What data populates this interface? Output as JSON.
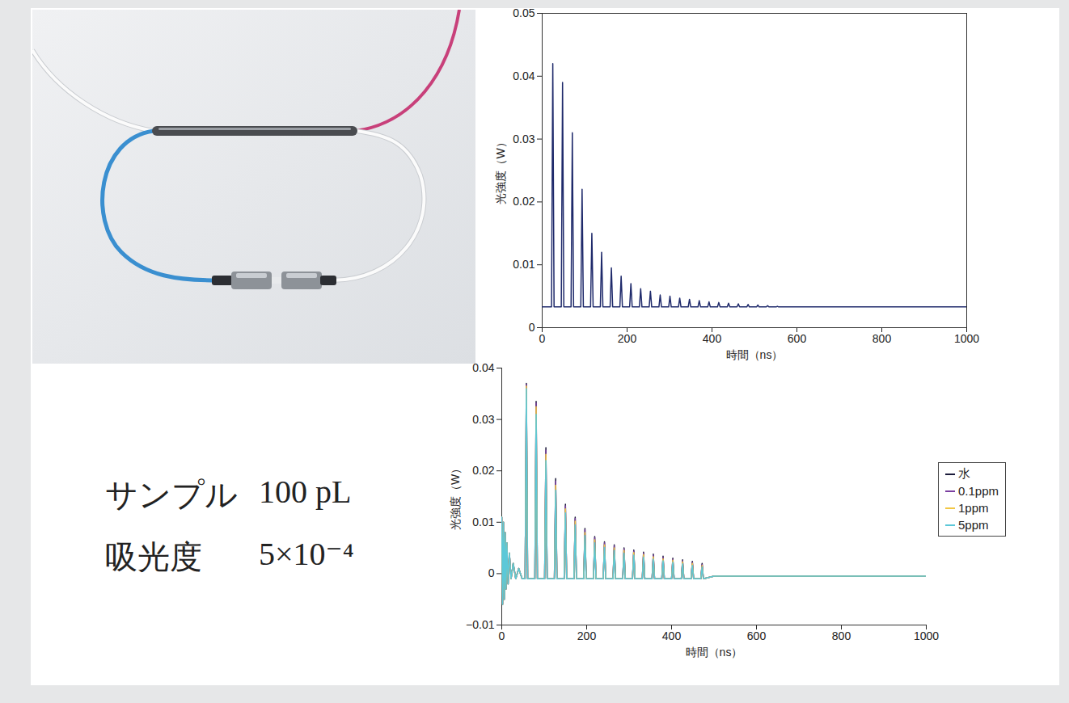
{
  "chart_data": [
    {
      "type": "line",
      "x_label": "時間（ns）",
      "y_label": "光強度（W）",
      "xlim": [
        0,
        1000
      ],
      "xticks": [
        0,
        200,
        400,
        600,
        800,
        1000
      ],
      "ylim": [
        0,
        0.05
      ],
      "yticks": [
        0,
        0.01,
        0.02,
        0.03,
        0.04,
        0.05
      ],
      "grid": false,
      "x": [
        0,
        22,
        25,
        28,
        45,
        48,
        51,
        68,
        71,
        74,
        91,
        94,
        97,
        114,
        117,
        120,
        137,
        140,
        143,
        160,
        163,
        166,
        183,
        186,
        189,
        206,
        209,
        212,
        229,
        232,
        235,
        252,
        255,
        258,
        275,
        278,
        281,
        298,
        301,
        304,
        321,
        324,
        327,
        344,
        347,
        350,
        367,
        370,
        373,
        390,
        393,
        396,
        413,
        416,
        419,
        436,
        439,
        442,
        459,
        462,
        465,
        482,
        485,
        488,
        505,
        508,
        511,
        528,
        531,
        534,
        551,
        554,
        557,
        600,
        1000
      ],
      "series": [
        {
          "color": "#1f2a6b",
          "values": [
            0.0033,
            0.0033,
            0.042,
            0.0033,
            0.0033,
            0.039,
            0.0033,
            0.0033,
            0.031,
            0.0033,
            0.0033,
            0.022,
            0.0033,
            0.0033,
            0.015,
            0.0033,
            0.0033,
            0.012,
            0.0033,
            0.0033,
            0.0095,
            0.0033,
            0.0033,
            0.0082,
            0.0033,
            0.0033,
            0.007,
            0.0033,
            0.0033,
            0.0062,
            0.0033,
            0.0033,
            0.0058,
            0.0033,
            0.0033,
            0.0052,
            0.0033,
            0.0033,
            0.005,
            0.0033,
            0.0033,
            0.0047,
            0.0033,
            0.0033,
            0.0045,
            0.0033,
            0.0033,
            0.0043,
            0.0033,
            0.0033,
            0.0041,
            0.0033,
            0.0033,
            0.004,
            0.0033,
            0.0033,
            0.0039,
            0.0033,
            0.0033,
            0.0038,
            0.0033,
            0.0033,
            0.0037,
            0.0033,
            0.0033,
            0.0036,
            0.0033,
            0.0033,
            0.0035,
            0.0033,
            0.0033,
            0.0034,
            0.0033,
            0.0033,
            0.0033
          ]
        }
      ]
    },
    {
      "type": "line",
      "x_label": "時間（ns）",
      "y_label": "光強度（W）",
      "xlim": [
        0,
        1000
      ],
      "xticks": [
        0,
        200,
        400,
        600,
        800,
        1000
      ],
      "ylim": [
        -0.01,
        0.04
      ],
      "yticks": [
        -0.01,
        0,
        0.01,
        0.02,
        0.03,
        0.04
      ],
      "grid": false,
      "legend": "right",
      "x": [
        0,
        2,
        4,
        6,
        8,
        10,
        12,
        15,
        18,
        22,
        27,
        33,
        40,
        48,
        55,
        58,
        61,
        78,
        81,
        84,
        101,
        104,
        107,
        124,
        127,
        130,
        147,
        150,
        153,
        170,
        173,
        176,
        193,
        196,
        199,
        216,
        219,
        222,
        239,
        242,
        245,
        262,
        265,
        268,
        285,
        288,
        291,
        308,
        311,
        314,
        331,
        334,
        337,
        354,
        357,
        360,
        377,
        380,
        383,
        400,
        403,
        406,
        423,
        426,
        429,
        446,
        449,
        452,
        469,
        472,
        475,
        500,
        1000
      ],
      "series": [
        {
          "name": "水",
          "color": "#1b1b3a",
          "values": [
            0.011,
            -0.006,
            0.01,
            -0.005,
            0.008,
            -0.003,
            0.006,
            -0.002,
            0.004,
            -0.001,
            0.002,
            -0.001,
            0.001,
            -0.001,
            -0.001,
            0.037,
            -0.001,
            -0.001,
            0.0335,
            -0.001,
            -0.001,
            0.0245,
            -0.001,
            -0.001,
            0.0185,
            -0.001,
            -0.001,
            0.0135,
            -0.001,
            -0.001,
            0.011,
            -0.001,
            -0.001,
            0.0088,
            -0.001,
            -0.001,
            0.0072,
            -0.001,
            -0.001,
            0.0062,
            -0.001,
            -0.001,
            0.0056,
            -0.001,
            -0.001,
            0.005,
            -0.001,
            -0.001,
            0.0046,
            -0.001,
            -0.001,
            0.0042,
            -0.001,
            -0.001,
            0.0038,
            -0.001,
            -0.001,
            0.0034,
            -0.001,
            -0.001,
            0.003,
            -0.001,
            -0.001,
            0.0027,
            -0.001,
            -0.001,
            0.0024,
            -0.001,
            -0.001,
            0.002,
            -0.001,
            -0.0005,
            -0.0005
          ]
        },
        {
          "name": "0.1ppm",
          "color": "#7b3fa0",
          "values": [
            0.011,
            -0.006,
            0.01,
            -0.005,
            0.008,
            -0.003,
            0.006,
            -0.002,
            0.004,
            -0.001,
            0.002,
            -0.001,
            0.001,
            -0.001,
            -0.001,
            0.0368,
            -0.001,
            -0.001,
            0.0332,
            -0.001,
            -0.001,
            0.024,
            -0.001,
            -0.001,
            0.018,
            -0.001,
            -0.001,
            0.0132,
            -0.001,
            -0.001,
            0.0107,
            -0.001,
            -0.001,
            0.0085,
            -0.001,
            -0.001,
            0.007,
            -0.001,
            -0.001,
            0.006,
            -0.001,
            -0.001,
            0.0054,
            -0.001,
            -0.001,
            0.0048,
            -0.001,
            -0.001,
            0.0044,
            -0.001,
            -0.001,
            0.004,
            -0.001,
            -0.001,
            0.0036,
            -0.001,
            -0.001,
            0.0032,
            -0.001,
            -0.001,
            0.0028,
            -0.001,
            -0.001,
            0.0025,
            -0.001,
            -0.001,
            0.0022,
            -0.001,
            -0.001,
            0.0018,
            -0.001,
            -0.0005,
            -0.0005
          ]
        },
        {
          "name": "1ppm",
          "color": "#f2c744",
          "values": [
            0.011,
            -0.006,
            0.01,
            -0.005,
            0.008,
            -0.003,
            0.006,
            -0.002,
            0.004,
            -0.001,
            0.002,
            -0.001,
            0.001,
            -0.001,
            -0.001,
            0.0365,
            -0.001,
            -0.001,
            0.0325,
            -0.001,
            -0.001,
            0.0232,
            -0.001,
            -0.001,
            0.0172,
            -0.001,
            -0.001,
            0.0126,
            -0.001,
            -0.001,
            0.0102,
            -0.001,
            -0.001,
            0.008,
            -0.001,
            -0.001,
            0.0066,
            -0.001,
            -0.001,
            0.0056,
            -0.001,
            -0.001,
            0.005,
            -0.001,
            -0.001,
            0.0045,
            -0.001,
            -0.001,
            0.0041,
            -0.001,
            -0.001,
            0.0037,
            -0.001,
            -0.001,
            0.0033,
            -0.001,
            -0.001,
            0.0029,
            -0.001,
            -0.001,
            0.0026,
            -0.001,
            -0.001,
            0.0023,
            -0.001,
            -0.001,
            0.002,
            -0.001,
            -0.001,
            0.0016,
            -0.001,
            -0.0005,
            -0.0005
          ]
        },
        {
          "name": "5ppm",
          "color": "#5cc8d8",
          "values": [
            0.011,
            -0.006,
            0.01,
            -0.005,
            0.008,
            -0.003,
            0.006,
            -0.002,
            0.004,
            -0.001,
            0.002,
            -0.001,
            0.001,
            -0.001,
            -0.001,
            0.036,
            -0.001,
            -0.001,
            0.031,
            -0.001,
            -0.001,
            0.022,
            -0.001,
            -0.001,
            0.0162,
            -0.001,
            -0.001,
            0.0118,
            -0.001,
            -0.001,
            0.0095,
            -0.001,
            -0.001,
            0.0074,
            -0.001,
            -0.001,
            0.006,
            -0.001,
            -0.001,
            0.0051,
            -0.001,
            -0.001,
            0.0045,
            -0.001,
            -0.001,
            0.004,
            -0.001,
            -0.001,
            0.0036,
            -0.001,
            -0.001,
            0.0032,
            -0.001,
            -0.001,
            0.0028,
            -0.001,
            -0.001,
            0.0025,
            -0.001,
            -0.001,
            0.0022,
            -0.001,
            -0.001,
            0.0019,
            -0.001,
            -0.001,
            0.0016,
            -0.001,
            -0.001,
            0.0013,
            -0.001,
            -0.0005,
            -0.0005
          ]
        }
      ]
    }
  ],
  "text": [
    {
      "label": "サンプル",
      "value": "100 pL"
    },
    {
      "label": "吸光度",
      "value": "5×10⁻⁴"
    }
  ]
}
